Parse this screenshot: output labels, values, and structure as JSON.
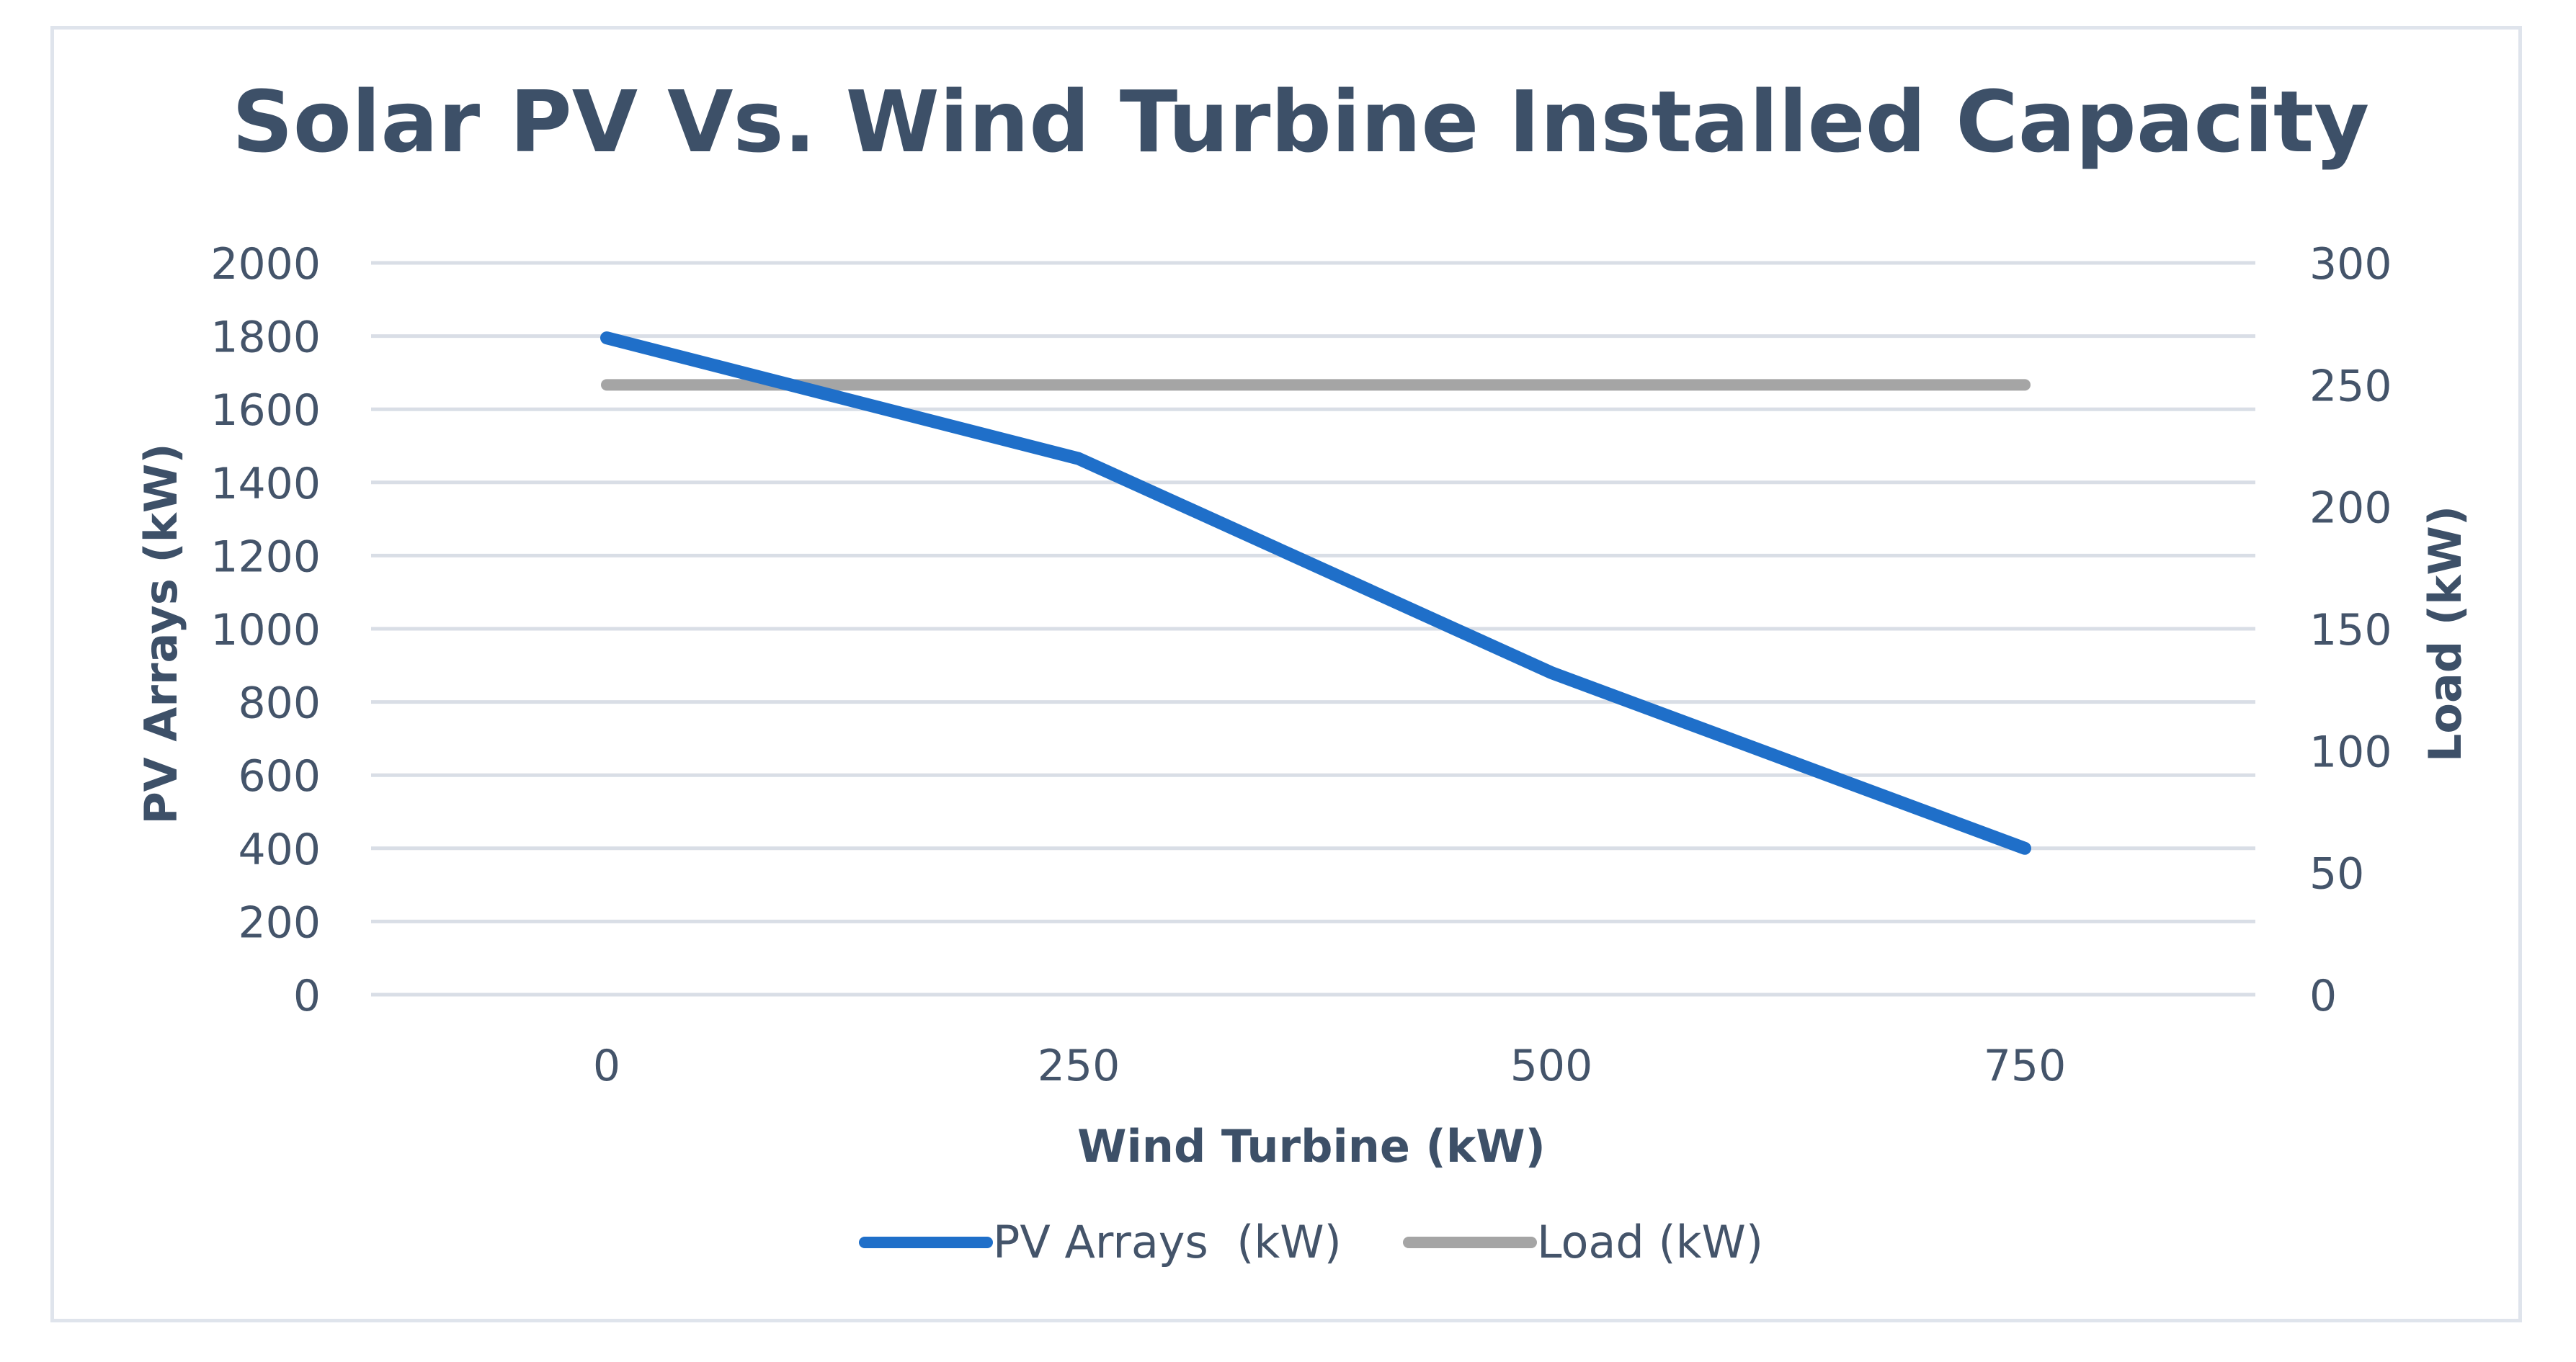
{
  "chart_data": {
    "type": "line",
    "title": "Solar PV Vs. Wind Turbine Installed Capacity",
    "xlabel": "Wind Turbine (kW)",
    "ylabel": "PV Arrays (kW)",
    "y2label": "Load (kW)",
    "categories": [
      "0",
      "250",
      "500",
      "750"
    ],
    "ylim": [
      0,
      2000
    ],
    "yticks": [
      "0",
      "200",
      "400",
      "600",
      "800",
      "1000",
      "1200",
      "1400",
      "1600",
      "1800",
      "2000"
    ],
    "y2lim": [
      0,
      300
    ],
    "y2ticks": [
      "0",
      "50",
      "100",
      "150",
      "200",
      "250",
      "300"
    ],
    "grid": true,
    "legend_position": "bottom",
    "series": [
      {
        "name": "PV Arrays  (kW)",
        "axis": "left",
        "color": "#1f6fc9",
        "values": [
          1795,
          1465,
          880,
          400
        ]
      },
      {
        "name": "Load (kW)",
        "axis": "right",
        "color": "#a5a5a5",
        "values": [
          250,
          250,
          250,
          250
        ]
      }
    ]
  }
}
